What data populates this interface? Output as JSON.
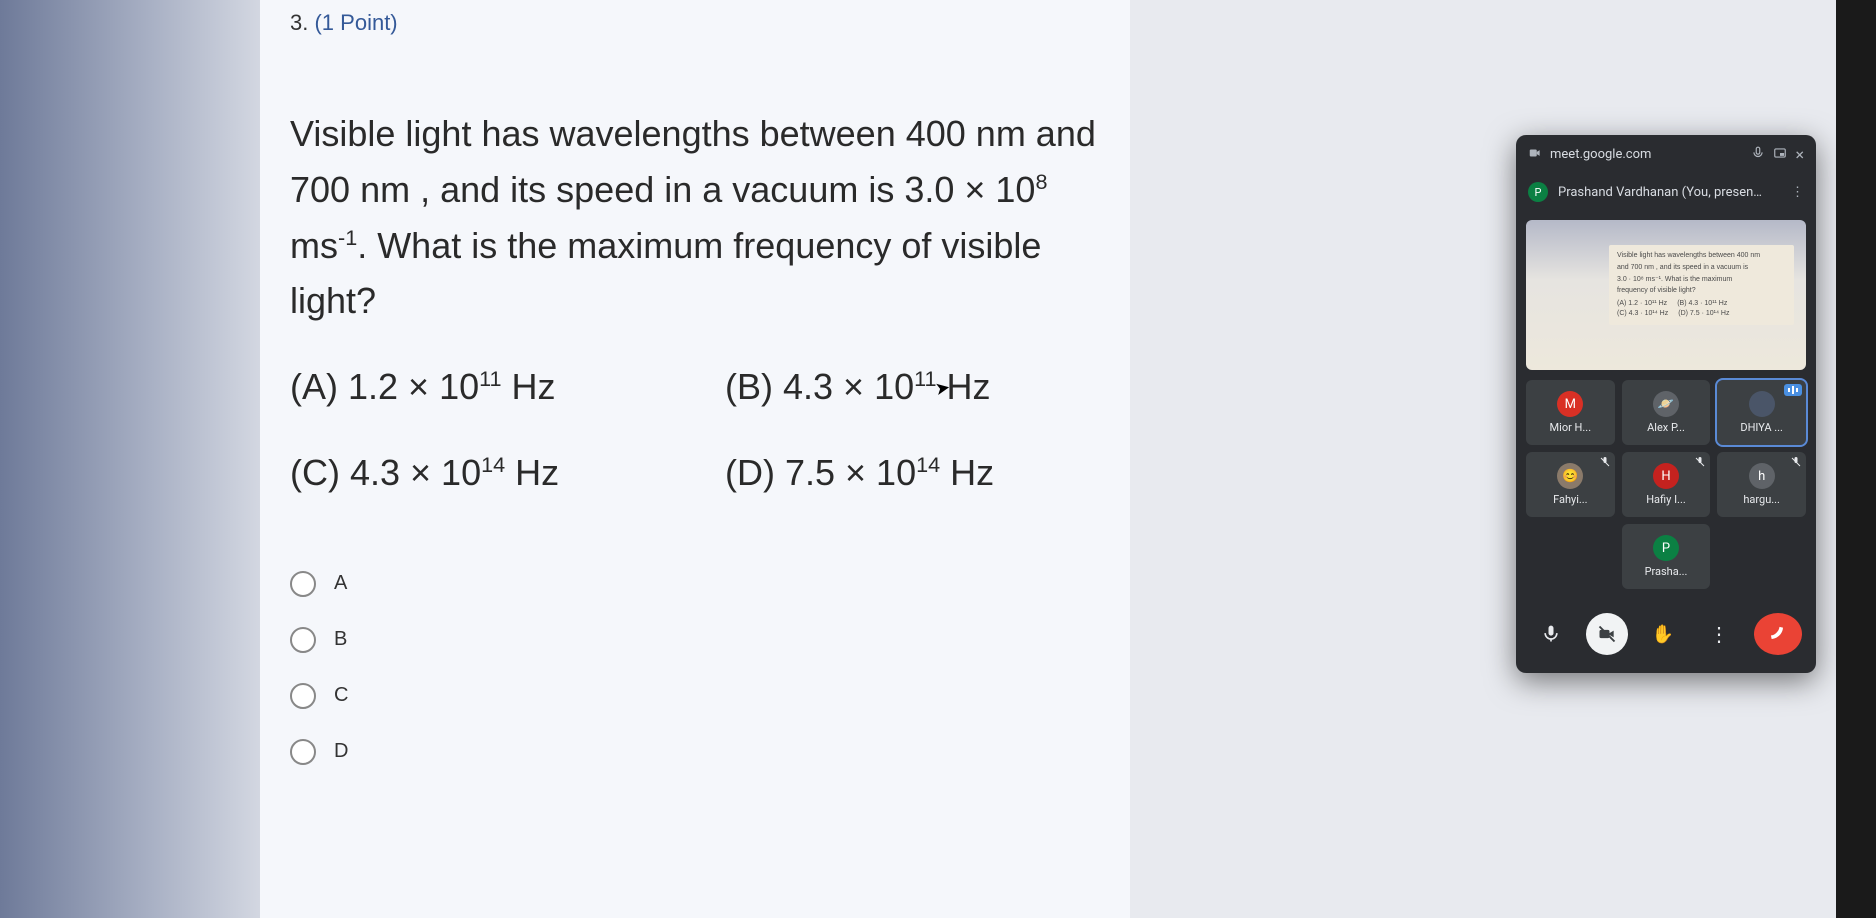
{
  "question": {
    "number": "3.",
    "points": "(1 Point)",
    "html": "Visible light has wavelengths between 400 nm and 700 nm , and its speed in a vacuum is 3.0 × 10<sup>8</sup> ms<sup>-1</sup>. What is the maximum frequency of visible light?",
    "options": {
      "a": "(A)  1.2 × 10<sup>11</sup> Hz",
      "b": "(B)  4.3 × 10<sup>11</sup> Hz",
      "c": "(C)  4.3 × 10<sup>14</sup> Hz",
      "d": "(D)  7.5 × 10<sup>14</sup> Hz"
    }
  },
  "answers": [
    "A",
    "B",
    "C",
    "D"
  ],
  "meet": {
    "url": "meet.google.com",
    "presenter": "Prashand Vardhanan (You, presen…",
    "presenterInitial": "P",
    "thumb": {
      "l1": "Visible light has wavelengths between 400 nm",
      "l2": "and 700 nm , and its speed in a vacuum is",
      "l3": "3.0 · 10⁸ ms⁻¹. What is the maximum",
      "l4": "frequency of visible light?",
      "oA": "(A) 1.2 · 10¹¹ Hz",
      "oB": "(B) 4.3 · 10¹¹ Hz",
      "oC": "(C) 4.3 · 10¹⁴ Hz",
      "oD": "(D) 7.5 · 10¹⁴ Hz"
    },
    "tiles": [
      {
        "name": "Mior H...",
        "initial": "M",
        "color": "#d93025",
        "muted": false,
        "speaking": false,
        "highlighted": false,
        "image": false
      },
      {
        "name": "Alex P...",
        "initial": "",
        "color": "#5f6368",
        "muted": false,
        "speaking": false,
        "highlighted": false,
        "image": true,
        "emoji": "🪐"
      },
      {
        "name": "DHIYA ...",
        "initial": "",
        "color": "#4a5568",
        "muted": false,
        "speaking": true,
        "highlighted": true,
        "image": true,
        "emoji": ""
      },
      {
        "name": "Fahyi...",
        "initial": "",
        "color": "#8a7a6a",
        "muted": true,
        "speaking": false,
        "highlighted": false,
        "image": true,
        "emoji": "😊"
      },
      {
        "name": "Hafiy I...",
        "initial": "H",
        "color": "#c5221f",
        "muted": true,
        "speaking": false,
        "highlighted": false,
        "image": false
      },
      {
        "name": "hargu...",
        "initial": "h",
        "color": "#5f6368",
        "muted": true,
        "speaking": false,
        "highlighted": false,
        "image": false
      },
      {
        "name": "Prasha...",
        "initial": "P",
        "color": "#0b8043",
        "muted": false,
        "speaking": false,
        "highlighted": false,
        "image": false,
        "solo": true
      }
    ]
  }
}
